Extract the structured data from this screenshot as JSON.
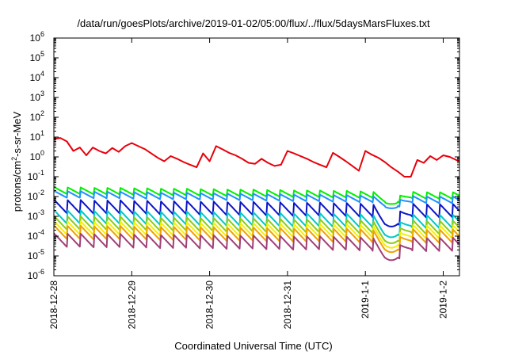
{
  "chart_data": {
    "type": "line",
    "title": "/data/run/goesPlots/archive/2019-01-02/05:00/flux/../flux/5daysMarsFluxes.txt",
    "xlabel": "Coordinated Universal Time (UTC)",
    "ylabel_base": "protons/cm",
    "ylabel_sup": "2",
    "ylabel_rest": "-s-sr-MeV",
    "yscale": "log",
    "ylim": [
      1e-06,
      1000000.0
    ],
    "xlim": [
      "2018-12-28T00:00",
      "2019-01-02T05:00"
    ],
    "x_ticks": [
      "2018-12-28",
      "2018-12-29",
      "2018-12-30",
      "2018-12-31",
      "2019-1-1",
      "2019-1-2"
    ],
    "y_tick_base": "10",
    "y_ticks": [
      "-6",
      "-5",
      "-4",
      "-3",
      "-2",
      "-1",
      "0",
      "1",
      "2",
      "3",
      "4",
      "5",
      "6"
    ],
    "grid": false,
    "legend": "none",
    "series": [
      {
        "color": "#e8000b",
        "hours": [
          0,
          2,
          4,
          6,
          8,
          10,
          12,
          14,
          16,
          18,
          20,
          22,
          24,
          26,
          28,
          30,
          32,
          34,
          36,
          38,
          40,
          42,
          44,
          46,
          48,
          50,
          52,
          54,
          56,
          58,
          60,
          62,
          64,
          66,
          68,
          70,
          72,
          74,
          76,
          78,
          80,
          82,
          84,
          86,
          88,
          90,
          92,
          94,
          96,
          98,
          100,
          102,
          104,
          106,
          108,
          110,
          112,
          114,
          116,
          118,
          120,
          122,
          124,
          125
        ],
        "values": [
          8,
          9,
          6,
          2,
          3,
          1.2,
          3,
          2,
          1.5,
          2.8,
          1.8,
          3.5,
          5,
          3.5,
          2.5,
          1.5,
          0.9,
          0.6,
          1.1,
          0.8,
          0.55,
          0.4,
          0.3,
          1.5,
          0.6,
          3.5,
          2.4,
          1.6,
          1.2,
          0.8,
          0.5,
          0.45,
          0.8,
          0.5,
          0.35,
          0.4,
          2,
          1.5,
          1.1,
          0.8,
          0.55,
          0.4,
          0.3,
          1.6,
          1,
          0.6,
          0.35,
          0.2,
          2,
          1.3,
          0.9,
          0.55,
          0.3,
          0.18,
          0.1,
          0.1,
          0.7,
          0.5,
          1.1,
          0.7,
          1.2,
          1,
          0.7,
          0.6
        ]
      },
      {
        "color": "#00f000",
        "hours": [
          0,
          125
        ],
        "values": [
          0.028,
          0.015
        ]
      },
      {
        "color": "#1e90ff",
        "hours": [
          0,
          125
        ],
        "values": [
          0.018,
          0.009
        ]
      },
      {
        "color": "#0a14c8",
        "hours": [
          0,
          125
        ],
        "values": [
          0.006,
          0.0035
        ]
      },
      {
        "color": "#00c8c8",
        "hours": [
          0,
          125
        ],
        "values": [
          0.0018,
          0.001
        ]
      },
      {
        "color": "#8ccc14",
        "hours": [
          0,
          125
        ],
        "values": [
          0.0009,
          0.0005
        ]
      },
      {
        "color": "#f5f000",
        "hours": [
          0,
          125
        ],
        "values": [
          0.0005,
          0.0003
        ]
      },
      {
        "color": "#f0a000",
        "hours": [
          0,
          125
        ],
        "values": [
          0.0003,
          0.00018
        ]
      },
      {
        "color": "#a04078",
        "hours": [
          0,
          125
        ],
        "values": [
          0.00012,
          7e-05
        ]
      }
    ]
  }
}
